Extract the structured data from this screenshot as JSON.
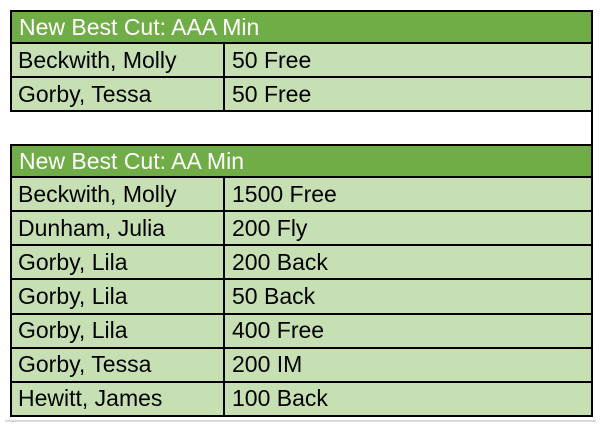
{
  "colors": {
    "header_bg": "#70AD47",
    "header_text": "#FFFFFF",
    "row_bg": "#C6E0B4",
    "row_text": "#000000",
    "border": "#000000",
    "shadow": "#D9D9D9",
    "canvas_bg": "#FFFFFF"
  },
  "tables": [
    {
      "title": "New Best Cut: AAA Min",
      "rows": [
        {
          "name": "Beckwith, Molly",
          "event": "50 Free"
        },
        {
          "name": "Gorby, Tessa",
          "event": "50 Free"
        }
      ]
    },
    {
      "title": "New Best Cut: AA Min",
      "rows": [
        {
          "name": "Beckwith, Molly",
          "event": "1500 Free"
        },
        {
          "name": "Dunham, Julia",
          "event": "200 Fly"
        },
        {
          "name": "Gorby, Lila",
          "event": "200 Back"
        },
        {
          "name": "Gorby, Lila",
          "event": "50 Back"
        },
        {
          "name": "Gorby, Lila",
          "event": "400 Free"
        },
        {
          "name": "Gorby, Tessa",
          "event": "200 IM"
        },
        {
          "name": "Hewitt, James",
          "event": "100 Back"
        }
      ]
    }
  ]
}
